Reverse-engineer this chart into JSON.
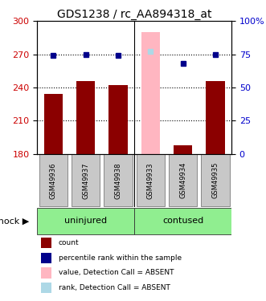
{
  "title": "GDS1238 / rc_AA894318_at",
  "samples": [
    "GSM49936",
    "GSM49937",
    "GSM49938",
    "GSM49933",
    "GSM49934",
    "GSM49935"
  ],
  "bar_values": [
    234,
    246,
    242,
    290,
    188,
    246
  ],
  "bar_colors": [
    "#8B0000",
    "#8B0000",
    "#8B0000",
    "#FFB6C1",
    "#8B0000",
    "#8B0000"
  ],
  "dot_values": [
    74,
    75,
    74,
    77,
    68,
    75
  ],
  "dot_colors": [
    "#00008B",
    "#00008B",
    "#00008B",
    "#ADD8E6",
    "#00008B",
    "#00008B"
  ],
  "ylim_left": [
    180,
    300
  ],
  "ylim_right": [
    0,
    100
  ],
  "yticks_left": [
    180,
    210,
    240,
    270,
    300
  ],
  "yticks_right": [
    0,
    25,
    50,
    75,
    100
  ],
  "ytick_labels_left": [
    "180",
    "210",
    "240",
    "270",
    "300"
  ],
  "ytick_labels_right": [
    "0",
    "25",
    "50",
    "75",
    "100%"
  ],
  "hlines": [
    210,
    240,
    270
  ],
  "group_names": [
    "uninjured",
    "contused"
  ],
  "group_color": "#90EE90",
  "sample_box_color": "#C8C8C8",
  "shock_label": "shock",
  "legend_items": [
    {
      "color": "#8B0000",
      "label": "count"
    },
    {
      "color": "#00008B",
      "label": "percentile rank within the sample"
    },
    {
      "color": "#FFB6C1",
      "label": "value, Detection Call = ABSENT"
    },
    {
      "color": "#ADD8E6",
      "label": "rank, Detection Call = ABSENT"
    }
  ],
  "title_fontsize": 10,
  "left_tick_color": "#CC0000",
  "right_tick_color": "#0000CC"
}
